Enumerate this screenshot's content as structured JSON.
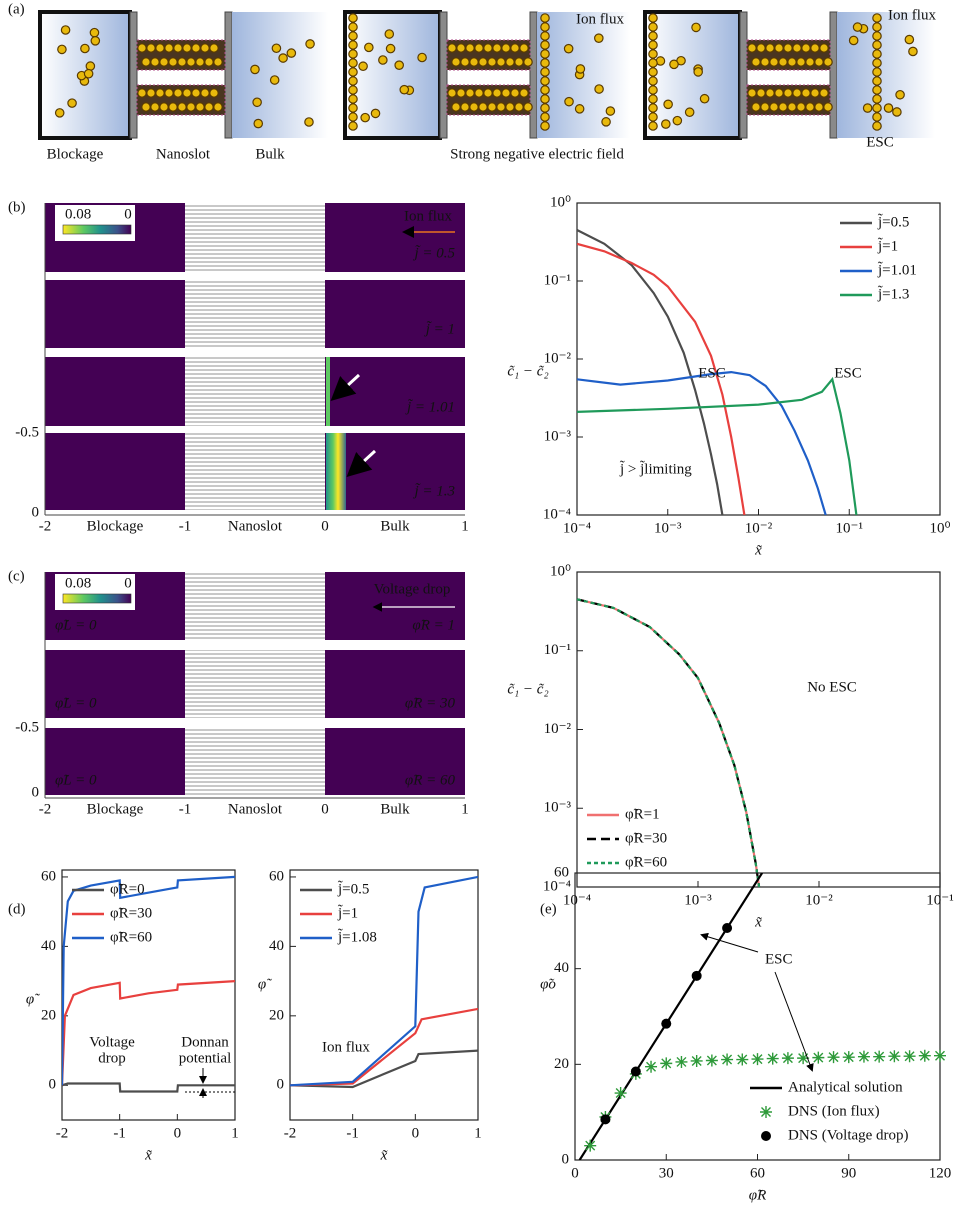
{
  "panel_labels": [
    "(a)",
    "(b)",
    "(c)",
    "(d)",
    "(e)"
  ],
  "schematic": {
    "labels": [
      "Blockage",
      "Nanoslot",
      "Bulk"
    ],
    "field_note": "Strong negative electric field",
    "esc": "ESC",
    "ion_flux": [
      "Ion flux",
      "Ion flux"
    ]
  },
  "heatmap_b": {
    "colorbar": [
      "0.08",
      "0"
    ],
    "ion_flux": "Ion flux",
    "row_labels": [
      "j̃ = 0.5",
      "j̃ = 1",
      "j̃ = 1.01",
      "j̃ = 1.3"
    ],
    "y_ticks": [
      "-0.5",
      "0"
    ],
    "x_ticks": [
      "-2",
      "-1",
      "0",
      "1"
    ],
    "regions": [
      "Blockage",
      "Nanoslot",
      "Bulk"
    ]
  },
  "heatmap_c": {
    "colorbar": [
      "0.08",
      "0"
    ],
    "voltage_drop": "Voltage drop",
    "left_labels": [
      "φ̃L = 0",
      "φ̃L = 0",
      "φ̃L = 0"
    ],
    "right_labels": [
      "φ̃R = 1",
      "φ̃R = 30",
      "φ̃R = 60"
    ],
    "y_ticks": [
      "-0.5",
      "0"
    ],
    "x_ticks": [
      "-2",
      "-1",
      "0",
      "1"
    ],
    "regions": [
      "Blockage",
      "Nanoslot",
      "Bulk"
    ]
  },
  "chart_data": [
    {
      "type": "line",
      "xlabel": "x̃",
      "ylabel": "c̃₁ − c̃₂",
      "xlog": true,
      "ylog": true,
      "xlim": [
        0.0001,
        1
      ],
      "ylim": [
        0.0001,
        1
      ],
      "xticks": [
        {
          "value": 0.0001,
          "label": "10⁻⁴"
        },
        {
          "value": 0.001,
          "label": "10⁻³"
        },
        {
          "value": 0.01,
          "label": "10⁻²"
        },
        {
          "value": 0.1,
          "label": "10⁻¹"
        },
        {
          "value": 1,
          "label": "10⁰"
        }
      ],
      "yticks": [
        {
          "value": 0.0001,
          "label": "10⁻⁴"
        },
        {
          "value": 0.001,
          "label": "10⁻³"
        },
        {
          "value": 0.01,
          "label": "10⁻²"
        },
        {
          "value": 0.1,
          "label": "10⁻¹"
        },
        {
          "value": 1,
          "label": "10⁰"
        }
      ],
      "legend": "upper right",
      "series": [
        {
          "name": "j̃=0.5",
          "color": "#4d4d4d",
          "style": "solid",
          "x": [
            0.0001,
            0.0002,
            0.0004,
            0.0007,
            0.001,
            0.0015,
            0.002,
            0.0025,
            0.003,
            0.0035,
            0.004
          ],
          "values": [
            0.45,
            0.3,
            0.16,
            0.07,
            0.035,
            0.012,
            0.004,
            0.0015,
            0.0006,
            0.00025,
            0.0001
          ]
        },
        {
          "name": "j̃=1",
          "color": "#e8403e",
          "style": "solid",
          "x": [
            0.0001,
            0.0002,
            0.0004,
            0.0007,
            0.001,
            0.002,
            0.003,
            0.004,
            0.005,
            0.006,
            0.007
          ],
          "values": [
            0.3,
            0.24,
            0.17,
            0.12,
            0.085,
            0.03,
            0.011,
            0.0035,
            0.001,
            0.0003,
            0.0001
          ]
        },
        {
          "name": "j̃=1.01",
          "color": "#1f5fc8",
          "style": "solid",
          "x": [
            0.0001,
            0.0003,
            0.001,
            0.003,
            0.005,
            0.008,
            0.012,
            0.018,
            0.025,
            0.035,
            0.045,
            0.055
          ],
          "values": [
            0.0055,
            0.0047,
            0.0053,
            0.0064,
            0.0068,
            0.0062,
            0.0045,
            0.0025,
            0.0012,
            0.0005,
            0.00022,
            0.0001
          ]
        },
        {
          "name": "j̃=1.3",
          "color": "#1f9a5a",
          "style": "solid",
          "x": [
            0.0001,
            0.001,
            0.01,
            0.03,
            0.05,
            0.065,
            0.08,
            0.1,
            0.12
          ],
          "values": [
            0.0021,
            0.0023,
            0.0026,
            0.003,
            0.0038,
            0.0055,
            0.002,
            0.0005,
            0.0001
          ]
        }
      ],
      "annotations": [
        {
          "text": "ESC",
          "color": "#1f5fc8"
        },
        {
          "text": "ESC",
          "color": "#1f9a5a"
        },
        {
          "text": "j̃ > j̃limiting",
          "color": "#000000"
        }
      ]
    },
    {
      "type": "line",
      "xlabel": "x̃",
      "ylabel": "c̃₁ − c̃₂",
      "xlog": true,
      "ylog": true,
      "xlim": [
        0.0001,
        0.1
      ],
      "ylim": [
        0.0001,
        1
      ],
      "xticks": [
        {
          "value": 0.0001,
          "label": "10⁻⁴"
        },
        {
          "value": 0.001,
          "label": "10⁻³"
        },
        {
          "value": 0.01,
          "label": "10⁻²"
        },
        {
          "value": 0.1,
          "label": "10⁻¹"
        }
      ],
      "yticks": [
        {
          "value": 0.0001,
          "label": "10⁻⁴"
        },
        {
          "value": 0.001,
          "label": "10⁻³"
        },
        {
          "value": 0.01,
          "label": "10⁻²"
        },
        {
          "value": 0.1,
          "label": "10⁻¹"
        },
        {
          "value": 1,
          "label": "10⁰"
        }
      ],
      "legend": "lower left",
      "series": [
        {
          "name": "φ̃R=1",
          "color": "#f07070",
          "style": "solid",
          "x": [
            0.0001,
            0.0002,
            0.0004,
            0.0007,
            0.001,
            0.0015,
            0.002,
            0.0025,
            0.003,
            0.0032
          ],
          "values": [
            0.45,
            0.35,
            0.2,
            0.09,
            0.045,
            0.012,
            0.0035,
            0.0009,
            0.0002,
            0.0001
          ]
        },
        {
          "name": "φ̃R=30",
          "color": "#000000",
          "style": "dashed",
          "x": [
            0.0001,
            0.0002,
            0.0004,
            0.0007,
            0.001,
            0.0015,
            0.002,
            0.0025,
            0.003,
            0.0032
          ],
          "values": [
            0.45,
            0.35,
            0.2,
            0.09,
            0.045,
            0.012,
            0.0035,
            0.0009,
            0.0002,
            0.0001
          ]
        },
        {
          "name": "φ̃R=60",
          "color": "#1f9a5a",
          "style": "dotted",
          "x": [
            0.0001,
            0.0002,
            0.0004,
            0.0007,
            0.001,
            0.0015,
            0.002,
            0.0025,
            0.003,
            0.0032
          ],
          "values": [
            0.45,
            0.35,
            0.2,
            0.09,
            0.045,
            0.012,
            0.0035,
            0.0009,
            0.0002,
            0.0001
          ]
        }
      ],
      "annotations": [
        {
          "text": "No ESC",
          "color": "#000000"
        }
      ]
    },
    {
      "type": "line",
      "xlabel": "x̃",
      "ylabel": "φ̃",
      "xlog": false,
      "ylog": false,
      "xlim": [
        -2,
        1
      ],
      "ylim": [
        -10,
        62
      ],
      "xticks": [
        -2,
        -1,
        0,
        1
      ],
      "yticks": [
        0,
        20,
        40,
        60
      ],
      "legend": "upper left",
      "series": [
        {
          "name": "φ̃R=0",
          "color": "#4d4d4d",
          "style": "solid",
          "x": [
            -2,
            -1.9,
            -1,
            -0.99,
            0,
            0.01,
            1
          ],
          "values": [
            0,
            0.5,
            0.5,
            -1.8,
            -1.8,
            0,
            0
          ]
        },
        {
          "name": "φ̃R=30",
          "color": "#e8403e",
          "style": "solid",
          "x": [
            -2,
            -1.95,
            -1.8,
            -1.5,
            -1,
            -0.99,
            -0.5,
            0,
            0.01,
            1
          ],
          "values": [
            0,
            20,
            26,
            28,
            29.5,
            25,
            26.5,
            27.5,
            29,
            30
          ]
        },
        {
          "name": "φ̃R=60",
          "color": "#1f5fc8",
          "style": "solid",
          "x": [
            -2,
            -1.97,
            -1.9,
            -1.8,
            -1.5,
            -1,
            -0.99,
            0,
            0.01,
            1
          ],
          "values": [
            0,
            40,
            53,
            56,
            57.5,
            59,
            54,
            57,
            59,
            60
          ]
        }
      ],
      "annotations": [
        {
          "text": "Voltage",
          "color": "#000000"
        },
        {
          "text": "drop",
          "color": "#000000"
        },
        {
          "text": "Donnan",
          "color": "#000000"
        },
        {
          "text": "potential",
          "color": "#000000"
        }
      ]
    },
    {
      "type": "line",
      "xlabel": "x̃",
      "ylabel": "φ̃",
      "xlog": false,
      "ylog": false,
      "xlim": [
        -2,
        1
      ],
      "ylim": [
        -10,
        62
      ],
      "xticks": [
        -2,
        -1,
        0,
        1
      ],
      "yticks": [
        0,
        20,
        40,
        60
      ],
      "legend": "upper left",
      "series": [
        {
          "name": "j̃=0.5",
          "color": "#4d4d4d",
          "style": "solid",
          "x": [
            -2,
            -1,
            0,
            0.05,
            1
          ],
          "values": [
            0,
            -0.5,
            7,
            9,
            10
          ]
        },
        {
          "name": "j̃=1",
          "color": "#e8403e",
          "style": "solid",
          "x": [
            -2,
            -1,
            0,
            0.1,
            1
          ],
          "values": [
            0,
            0.5,
            15,
            19,
            22
          ]
        },
        {
          "name": "j̃=1.08",
          "color": "#1f5fc8",
          "style": "solid",
          "x": [
            -2,
            -1,
            0,
            0.05,
            0.15,
            1
          ],
          "values": [
            0,
            1,
            17,
            50,
            57,
            60
          ]
        }
      ],
      "annotations": [
        {
          "text": "Ion flux",
          "color": "#e8721e"
        }
      ]
    },
    {
      "type": "line",
      "xlabel": "φ̃R",
      "ylabel": "φ̃o",
      "xlog": false,
      "ylog": false,
      "xlim": [
        0,
        120
      ],
      "ylim": [
        0,
        60
      ],
      "xticks": [
        0,
        30,
        60,
        90,
        120
      ],
      "yticks": [
        0,
        20,
        40,
        60
      ],
      "legend": "lower right",
      "series": [
        {
          "name": "Analytical solution",
          "color": "#000000",
          "style": "solid",
          "x": [
            1.5,
            61.5
          ],
          "values": [
            0,
            60
          ]
        },
        {
          "name": "DNS (Ion flux)",
          "color": "#2e9a3a",
          "style": "none",
          "marker": "asterisk",
          "x": [
            5,
            10,
            15,
            20,
            25,
            30,
            35,
            40,
            45,
            50,
            55,
            60,
            65,
            70,
            75,
            80,
            85,
            90,
            95,
            100,
            105,
            110,
            115,
            120
          ],
          "values": [
            3,
            9,
            14,
            18,
            19.5,
            20.2,
            20.5,
            20.7,
            20.8,
            21,
            21,
            21.1,
            21.2,
            21.3,
            21.3,
            21.4,
            21.5,
            21.5,
            21.6,
            21.6,
            21.7,
            21.7,
            21.8,
            21.8
          ]
        },
        {
          "name": "DNS (Voltage drop)",
          "color": "#000000",
          "style": "none",
          "marker": "circle",
          "x": [
            10,
            20,
            30,
            40,
            50
          ],
          "values": [
            8.5,
            18.5,
            28.5,
            38.5,
            48.5
          ]
        }
      ],
      "annotations": [
        {
          "text": "ESC",
          "color": "#000000"
        }
      ]
    }
  ]
}
